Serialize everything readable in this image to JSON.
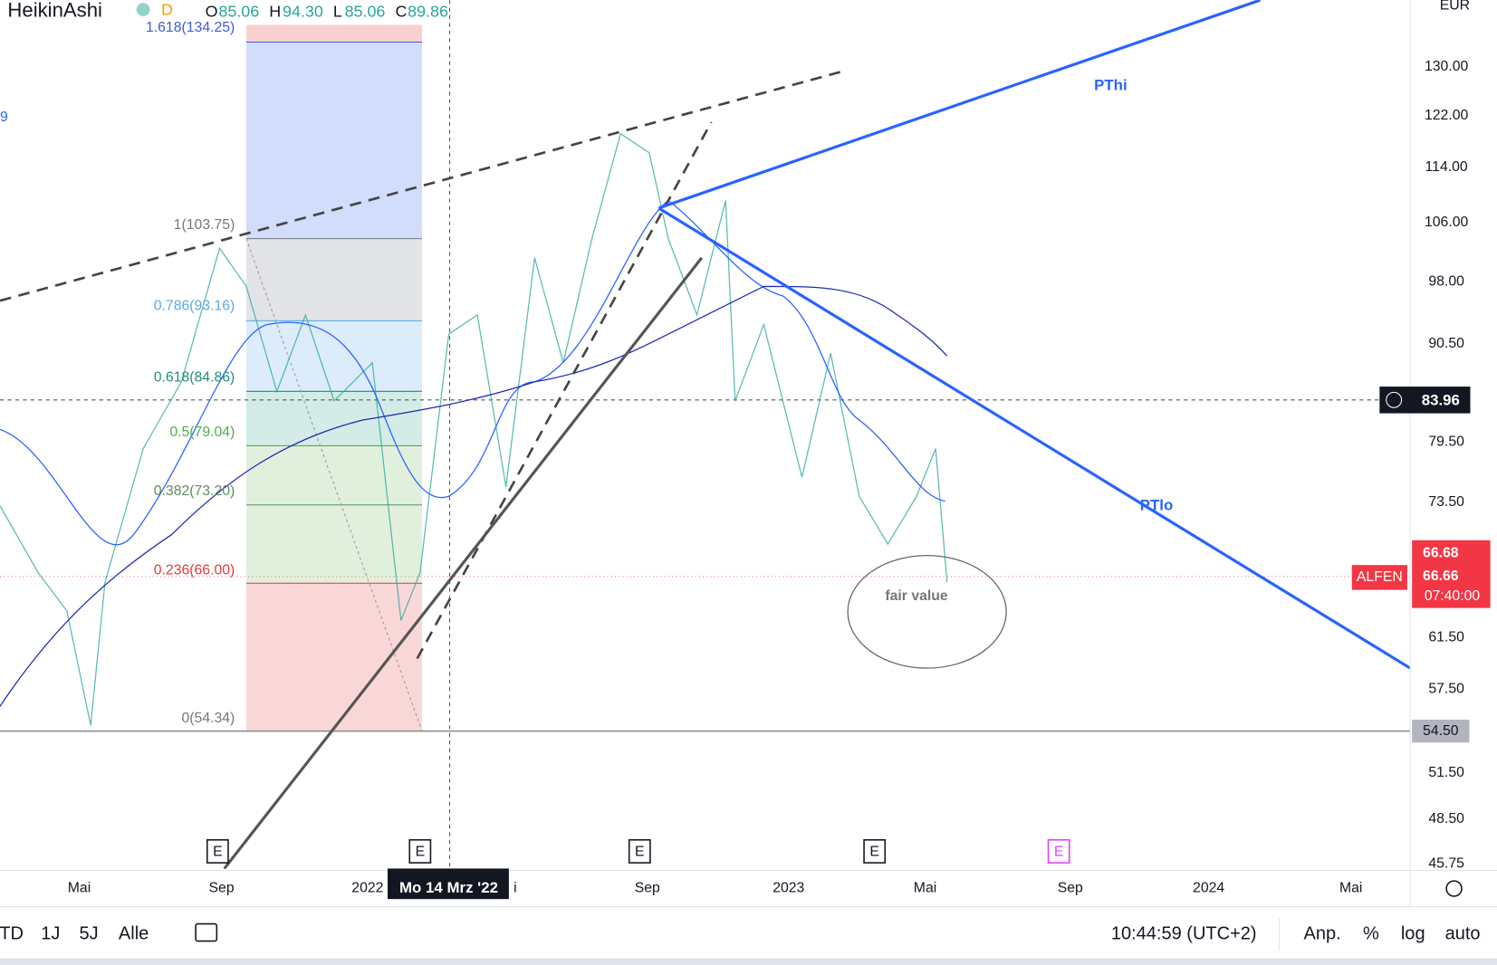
{
  "header": {
    "symbol": "HeikinAshi",
    "interval": "D",
    "ohlc": [
      {
        "key": "O",
        "value": "85.06"
      },
      {
        "key": "H",
        "value": "94.30"
      },
      {
        "key": "L",
        "value": "85.06"
      },
      {
        "key": "C",
        "value": "89.86"
      }
    ],
    "indicator_value": "9"
  },
  "fib_levels": [
    "1.618(134.25)",
    "1(103.75)",
    "0.786(93.16)",
    "0.618(84.86)",
    "0.5(79.04)",
    "0.382(73.20)",
    "0.236(66.00)",
    "0(54.34)"
  ],
  "price_axis": {
    "currency": "EUR",
    "labels": [
      "130.00",
      "122.00",
      "114.00",
      "106.00",
      "98.00",
      "90.50",
      "79.50",
      "73.50",
      "61.50",
      "57.50",
      "51.50",
      "48.50",
      "45.75"
    ],
    "crosshair_price": "83.96",
    "ticker": "ALFEN",
    "last_high": "66.68",
    "last_price": "66.66",
    "countdown": "07:40:00",
    "line_price": "54.50"
  },
  "time_axis": {
    "labels": [
      "Mai",
      "Sep",
      "2022",
      "Sep",
      "2023",
      "Mai",
      "Sep",
      "2024",
      "Mai"
    ],
    "crosshair_date": "Mo 14 Mrz '22",
    "cut_label": "i"
  },
  "annotations": {
    "upper_line": "PThi",
    "lower_line": "PTlo",
    "ellipse": "fair value",
    "earnings": "E"
  },
  "toolbar": {
    "ranges": [
      "TD",
      "1J",
      "5J",
      "Alle"
    ],
    "clock": "10:44:59 (UTC+2)",
    "options": [
      "Anp.",
      "%",
      "log",
      "auto"
    ]
  }
}
